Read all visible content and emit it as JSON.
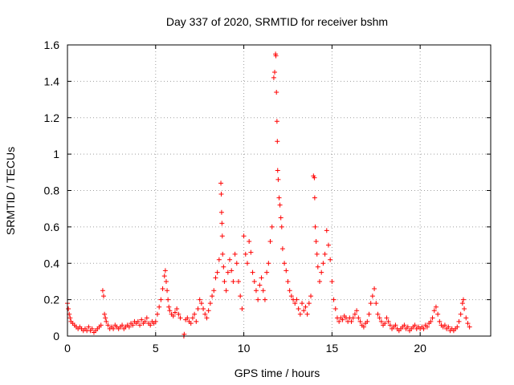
{
  "chart_data": {
    "type": "scatter",
    "title": "Day 337 of 2020, SRMTID for receiver bshm",
    "xlabel": "GPS time / hours",
    "ylabel": "SRMTID / TECUs",
    "xlim": [
      0,
      24
    ],
    "ylim": [
      0,
      1.6
    ],
    "xticks": [
      0,
      5,
      10,
      15,
      20
    ],
    "yticks": [
      0,
      0.2,
      0.4,
      0.6,
      0.8,
      1,
      1.2,
      1.4,
      1.6
    ],
    "ytick_labels": [
      "0",
      "0.2",
      "0.4",
      "0.6",
      "0.8",
      "1",
      "1.2",
      "1.4",
      "1.6"
    ],
    "grid": true,
    "marker": "+",
    "color": "#ff0000",
    "series": [
      {
        "name": "SRMTID",
        "points": [
          [
            0.0,
            0.18
          ],
          [
            0.05,
            0.15
          ],
          [
            0.1,
            0.12
          ],
          [
            0.15,
            0.1
          ],
          [
            0.2,
            0.08
          ],
          [
            0.3,
            0.07
          ],
          [
            0.4,
            0.06
          ],
          [
            0.5,
            0.05
          ],
          [
            0.6,
            0.04
          ],
          [
            0.7,
            0.05
          ],
          [
            0.8,
            0.04
          ],
          [
            0.9,
            0.03
          ],
          [
            1.0,
            0.04
          ],
          [
            1.1,
            0.03
          ],
          [
            1.2,
            0.05
          ],
          [
            1.3,
            0.03
          ],
          [
            1.4,
            0.04
          ],
          [
            1.5,
            0.02
          ],
          [
            1.6,
            0.03
          ],
          [
            1.7,
            0.04
          ],
          [
            1.8,
            0.05
          ],
          [
            1.9,
            0.06
          ],
          [
            2.0,
            0.25
          ],
          [
            2.05,
            0.22
          ],
          [
            2.1,
            0.12
          ],
          [
            2.15,
            0.1
          ],
          [
            2.2,
            0.08
          ],
          [
            2.3,
            0.06
          ],
          [
            2.4,
            0.04
          ],
          [
            2.5,
            0.05
          ],
          [
            2.6,
            0.04
          ],
          [
            2.7,
            0.06
          ],
          [
            2.8,
            0.05
          ],
          [
            2.9,
            0.04
          ],
          [
            3.0,
            0.05
          ],
          [
            3.1,
            0.06
          ],
          [
            3.2,
            0.04
          ],
          [
            3.3,
            0.05
          ],
          [
            3.4,
            0.06
          ],
          [
            3.5,
            0.05
          ],
          [
            3.6,
            0.07
          ],
          [
            3.7,
            0.06
          ],
          [
            3.8,
            0.08
          ],
          [
            3.9,
            0.07
          ],
          [
            4.0,
            0.08
          ],
          [
            4.1,
            0.06
          ],
          [
            4.2,
            0.09
          ],
          [
            4.3,
            0.07
          ],
          [
            4.4,
            0.08
          ],
          [
            4.5,
            0.1
          ],
          [
            4.6,
            0.07
          ],
          [
            4.7,
            0.06
          ],
          [
            4.8,
            0.08
          ],
          [
            4.9,
            0.07
          ],
          [
            5.0,
            0.08
          ],
          [
            5.1,
            0.12
          ],
          [
            5.2,
            0.16
          ],
          [
            5.3,
            0.2
          ],
          [
            5.4,
            0.26
          ],
          [
            5.5,
            0.33
          ],
          [
            5.55,
            0.36
          ],
          [
            5.6,
            0.3
          ],
          [
            5.65,
            0.25
          ],
          [
            5.7,
            0.2
          ],
          [
            5.75,
            0.16
          ],
          [
            5.8,
            0.14
          ],
          [
            5.9,
            0.12
          ],
          [
            6.0,
            0.11
          ],
          [
            6.1,
            0.13
          ],
          [
            6.2,
            0.15
          ],
          [
            6.3,
            0.12
          ],
          [
            6.4,
            0.1
          ],
          [
            6.6,
            0.0
          ],
          [
            6.62,
            0.01
          ],
          [
            6.7,
            0.09
          ],
          [
            6.8,
            0.1
          ],
          [
            6.9,
            0.08
          ],
          [
            7.0,
            0.07
          ],
          [
            7.1,
            0.1
          ],
          [
            7.2,
            0.12
          ],
          [
            7.3,
            0.08
          ],
          [
            7.4,
            0.15
          ],
          [
            7.5,
            0.2
          ],
          [
            7.6,
            0.18
          ],
          [
            7.7,
            0.15
          ],
          [
            7.8,
            0.12
          ],
          [
            7.9,
            0.1
          ],
          [
            8.0,
            0.14
          ],
          [
            8.1,
            0.18
          ],
          [
            8.2,
            0.22
          ],
          [
            8.3,
            0.25
          ],
          [
            8.4,
            0.32
          ],
          [
            8.5,
            0.35
          ],
          [
            8.6,
            0.42
          ],
          [
            8.7,
            0.84
          ],
          [
            8.72,
            0.78
          ],
          [
            8.74,
            0.68
          ],
          [
            8.76,
            0.62
          ],
          [
            8.78,
            0.55
          ],
          [
            8.8,
            0.45
          ],
          [
            8.85,
            0.38
          ],
          [
            8.9,
            0.3
          ],
          [
            9.0,
            0.25
          ],
          [
            9.1,
            0.35
          ],
          [
            9.2,
            0.42
          ],
          [
            9.3,
            0.36
          ],
          [
            9.4,
            0.3
          ],
          [
            9.5,
            0.45
          ],
          [
            9.6,
            0.4
          ],
          [
            9.7,
            0.3
          ],
          [
            9.8,
            0.22
          ],
          [
            9.9,
            0.15
          ],
          [
            10.0,
            0.55
          ],
          [
            10.1,
            0.45
          ],
          [
            10.2,
            0.4
          ],
          [
            10.3,
            0.52
          ],
          [
            10.4,
            0.46
          ],
          [
            10.5,
            0.35
          ],
          [
            10.6,
            0.3
          ],
          [
            10.7,
            0.25
          ],
          [
            10.8,
            0.2
          ],
          [
            10.9,
            0.28
          ],
          [
            11.0,
            0.32
          ],
          [
            11.1,
            0.25
          ],
          [
            11.2,
            0.2
          ],
          [
            11.3,
            0.35
          ],
          [
            11.4,
            0.4
          ],
          [
            11.5,
            0.52
          ],
          [
            11.6,
            0.6
          ],
          [
            11.7,
            1.42
          ],
          [
            11.75,
            1.45
          ],
          [
            11.8,
            1.55
          ],
          [
            11.82,
            1.54
          ],
          [
            11.85,
            1.34
          ],
          [
            11.88,
            1.18
          ],
          [
            11.9,
            1.07
          ],
          [
            11.92,
            0.91
          ],
          [
            11.95,
            0.86
          ],
          [
            12.0,
            0.76
          ],
          [
            12.05,
            0.72
          ],
          [
            12.1,
            0.65
          ],
          [
            12.15,
            0.6
          ],
          [
            12.2,
            0.48
          ],
          [
            12.3,
            0.4
          ],
          [
            12.4,
            0.36
          ],
          [
            12.5,
            0.3
          ],
          [
            12.6,
            0.25
          ],
          [
            12.7,
            0.22
          ],
          [
            12.8,
            0.2
          ],
          [
            12.9,
            0.18
          ],
          [
            13.0,
            0.2
          ],
          [
            13.1,
            0.15
          ],
          [
            13.2,
            0.12
          ],
          [
            13.3,
            0.18
          ],
          [
            13.4,
            0.14
          ],
          [
            13.5,
            0.16
          ],
          [
            13.6,
            0.12
          ],
          [
            13.7,
            0.18
          ],
          [
            13.8,
            0.22
          ],
          [
            13.95,
            0.88
          ],
          [
            14.0,
            0.87
          ],
          [
            14.02,
            0.76
          ],
          [
            14.05,
            0.6
          ],
          [
            14.1,
            0.52
          ],
          [
            14.15,
            0.45
          ],
          [
            14.2,
            0.38
          ],
          [
            14.3,
            0.3
          ],
          [
            14.4,
            0.35
          ],
          [
            14.5,
            0.4
          ],
          [
            14.6,
            0.45
          ],
          [
            14.7,
            0.58
          ],
          [
            14.8,
            0.5
          ],
          [
            14.9,
            0.42
          ],
          [
            15.0,
            0.3
          ],
          [
            15.1,
            0.2
          ],
          [
            15.2,
            0.15
          ],
          [
            15.3,
            0.1
          ],
          [
            15.4,
            0.08
          ],
          [
            15.5,
            0.1
          ],
          [
            15.6,
            0.09
          ],
          [
            15.7,
            0.11
          ],
          [
            15.8,
            0.1
          ],
          [
            15.9,
            0.08
          ],
          [
            16.0,
            0.1
          ],
          [
            16.1,
            0.08
          ],
          [
            16.2,
            0.1
          ],
          [
            16.3,
            0.12
          ],
          [
            16.4,
            0.14
          ],
          [
            16.5,
            0.1
          ],
          [
            16.6,
            0.08
          ],
          [
            16.7,
            0.06
          ],
          [
            16.8,
            0.05
          ],
          [
            16.9,
            0.07
          ],
          [
            17.0,
            0.08
          ],
          [
            17.1,
            0.12
          ],
          [
            17.2,
            0.18
          ],
          [
            17.3,
            0.22
          ],
          [
            17.4,
            0.26
          ],
          [
            17.5,
            0.18
          ],
          [
            17.6,
            0.12
          ],
          [
            17.7,
            0.1
          ],
          [
            17.8,
            0.08
          ],
          [
            17.9,
            0.06
          ],
          [
            18.0,
            0.07
          ],
          [
            18.1,
            0.1
          ],
          [
            18.2,
            0.08
          ],
          [
            18.3,
            0.06
          ],
          [
            18.4,
            0.04
          ],
          [
            18.5,
            0.05
          ],
          [
            18.6,
            0.06
          ],
          [
            18.7,
            0.04
          ],
          [
            18.8,
            0.03
          ],
          [
            18.9,
            0.04
          ],
          [
            19.0,
            0.05
          ],
          [
            19.1,
            0.06
          ],
          [
            19.2,
            0.04
          ],
          [
            19.3,
            0.05
          ],
          [
            19.4,
            0.03
          ],
          [
            19.5,
            0.04
          ],
          [
            19.6,
            0.05
          ],
          [
            19.7,
            0.06
          ],
          [
            19.8,
            0.04
          ],
          [
            19.9,
            0.05
          ],
          [
            20.0,
            0.04
          ],
          [
            20.1,
            0.05
          ],
          [
            20.2,
            0.04
          ],
          [
            20.3,
            0.06
          ],
          [
            20.4,
            0.05
          ],
          [
            20.5,
            0.07
          ],
          [
            20.6,
            0.08
          ],
          [
            20.7,
            0.1
          ],
          [
            20.8,
            0.14
          ],
          [
            20.9,
            0.16
          ],
          [
            21.0,
            0.12
          ],
          [
            21.1,
            0.08
          ],
          [
            21.2,
            0.06
          ],
          [
            21.3,
            0.05
          ],
          [
            21.4,
            0.06
          ],
          [
            21.5,
            0.04
          ],
          [
            21.6,
            0.05
          ],
          [
            21.7,
            0.03
          ],
          [
            21.8,
            0.04
          ],
          [
            21.9,
            0.03
          ],
          [
            22.0,
            0.04
          ],
          [
            22.1,
            0.05
          ],
          [
            22.2,
            0.08
          ],
          [
            22.3,
            0.12
          ],
          [
            22.4,
            0.18
          ],
          [
            22.45,
            0.2
          ],
          [
            22.5,
            0.15
          ],
          [
            22.6,
            0.1
          ],
          [
            22.7,
            0.07
          ],
          [
            22.8,
            0.05
          ]
        ]
      }
    ]
  }
}
